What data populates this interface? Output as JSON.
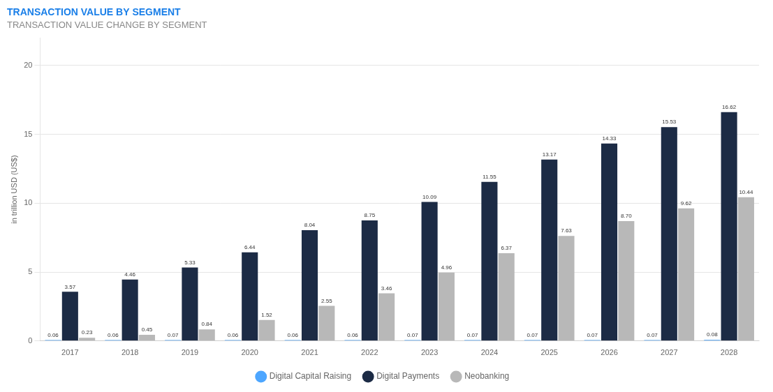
{
  "chart_data": {
    "type": "bar",
    "title": "TRANSACTION VALUE BY SEGMENT",
    "subtitle": "TRANSACTION VALUE CHANGE BY SEGMENT",
    "y_label": "in trillion USD (US$)",
    "categories": [
      "2017",
      "2018",
      "2019",
      "2020",
      "2021",
      "2022",
      "2023",
      "2024",
      "2025",
      "2026",
      "2027",
      "2028"
    ],
    "series": [
      {
        "name": "Digital Capital Raising",
        "color": "#4da6ff",
        "values": [
          0.06,
          0.06,
          0.07,
          0.06,
          0.06,
          0.06,
          0.07,
          0.07,
          0.07,
          0.07,
          0.07,
          0.08
        ],
        "value_labels": [
          "0.06",
          "0.06",
          "0.07",
          "0.06",
          "0.06",
          "0.06",
          "0.07",
          "0.07",
          "0.07",
          "0.07",
          "0.07",
          "0.08"
        ]
      },
      {
        "name": "Digital Payments",
        "color": "#1c2b45",
        "values": [
          3.57,
          4.46,
          5.33,
          6.44,
          8.04,
          8.75,
          10.09,
          11.55,
          13.17,
          14.33,
          15.53,
          16.62
        ],
        "value_labels": [
          "3.57",
          "4.46",
          "5.33",
          "6.44",
          "8.04",
          "8.75",
          "10.09",
          "11.55",
          "13.17",
          "14.33",
          "15.53",
          "16.62"
        ]
      },
      {
        "name": "Neobanking",
        "color": "#b8b8b8",
        "values": [
          0.23,
          0.45,
          0.84,
          1.52,
          2.55,
          3.46,
          4.96,
          6.37,
          7.63,
          8.7,
          9.62,
          10.44
        ],
        "value_labels": [
          "0.23",
          "0.45",
          "0.84",
          "1.52",
          "2.55",
          "3.46",
          "4.96",
          "6.37",
          "7.63",
          "8.70",
          "9.62",
          "10.44"
        ]
      }
    ],
    "ylim": [
      0,
      22
    ],
    "yticks": [
      0,
      5,
      10,
      15,
      20
    ],
    "grid": true,
    "legend": "bottom",
    "data_labels": true
  }
}
